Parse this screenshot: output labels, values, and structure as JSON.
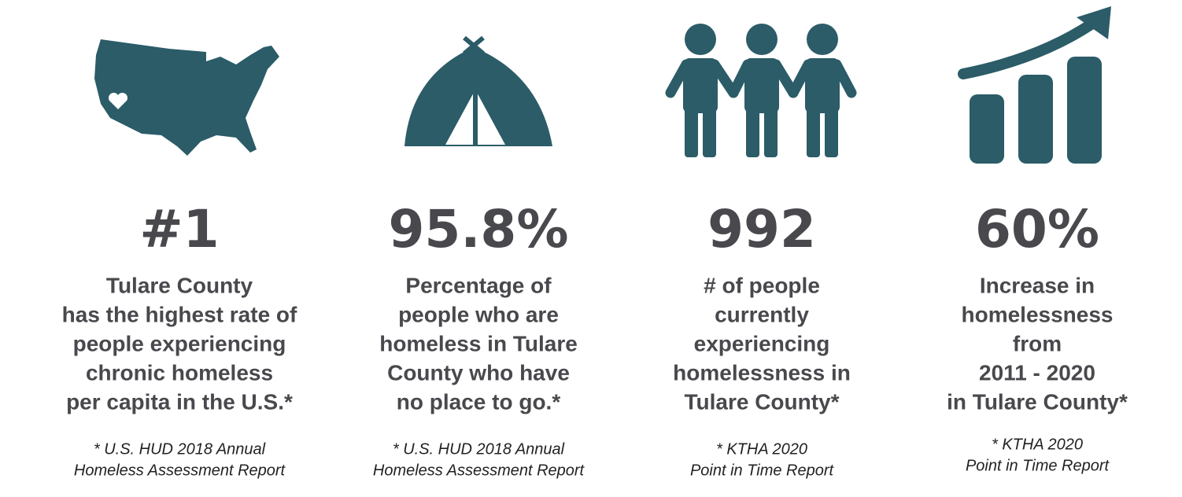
{
  "stats": [
    {
      "value": "#1",
      "description": [
        "Tulare County",
        "has the highest rate of",
        "people experiencing",
        "chronic homeless",
        "per capita in the U.S.*"
      ],
      "source": [
        "* U.S. HUD 2018 Annual",
        "Homeless Assessment Report"
      ]
    },
    {
      "value": "95.8%",
      "description": [
        "Percentage of",
        "people who are",
        "homeless in Tulare",
        "County who have",
        "no place to go.*"
      ],
      "source": [
        "* U.S. HUD 2018 Annual",
        "Homeless Assessment Report"
      ]
    },
    {
      "value": "992",
      "description": [
        "# of people",
        "currently",
        "experiencing",
        "homelessness in",
        "Tulare County*"
      ],
      "source": [
        "* KTHA 2020",
        "Point in Time Report"
      ]
    },
    {
      "value": "60%",
      "description": [
        "Increase in",
        "homelessness",
        "from",
        "2011 - 2020",
        "in Tulare County*"
      ],
      "source": [
        "* KTHA 2020",
        "Point in Time Report"
      ]
    }
  ]
}
